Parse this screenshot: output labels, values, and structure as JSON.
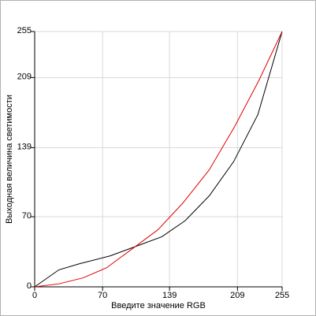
{
  "chart_data": {
    "type": "line",
    "x_label": "Введите значение RGB",
    "y_label": "Выходная величина светимости",
    "xlim": [
      0,
      255
    ],
    "ylim": [
      0,
      255
    ],
    "xticks": [
      0,
      70,
      139,
      209,
      255
    ],
    "yticks": [
      0,
      70,
      139,
      209,
      255
    ],
    "grid": true,
    "series": [
      {
        "color": "#000000",
        "x": [
          0,
          25,
          46,
          78,
          106,
          131,
          155,
          180,
          205,
          230,
          255
        ],
        "values": [
          0,
          17,
          23,
          31,
          41,
          50,
          66,
          91,
          125,
          172,
          255
        ]
      },
      {
        "color": "#e00000",
        "x": [
          0,
          25,
          50,
          74,
          102,
          127,
          153,
          180,
          206,
          231,
          255
        ],
        "values": [
          0,
          3,
          9,
          19,
          39,
          57,
          84,
          117,
          160,
          206,
          255
        ]
      }
    ]
  }
}
